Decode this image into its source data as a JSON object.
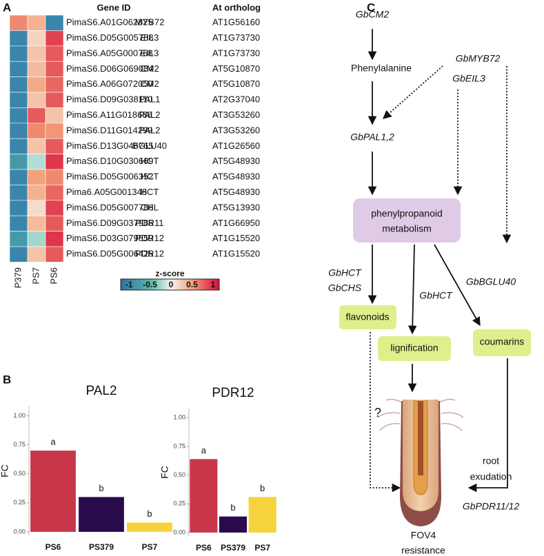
{
  "chart_data": [
    {
      "type": "heatmap",
      "panel": "A",
      "header_gene": "Gene ID",
      "header_ortholog": "At ortholog",
      "categories": [
        "P379",
        "PS7",
        "PS6"
      ],
      "gene_ids": [
        "PimaS6.A01G062825",
        "PimaS6.D05G005788",
        "PimaS6.A05G000768",
        "PimaS6.D06G069084",
        "PimaS6.A06G072050",
        "PimaS6.D09G038110",
        "PimaS6.A11G018686",
        "PimaS6.D11G014299",
        "PimaS6.D13G046765",
        "PimaS6.D10G030669",
        "PimaS6.D05G006352",
        "Pima6.A05G001348",
        "PimaS6.D05G007786",
        "PimaS6.D09G037986",
        "PimaS6.D03G079859",
        "PimaS6.D05G006425"
      ],
      "gene_names": [
        "MYB72",
        "EIL3",
        "EIL3",
        "CM2",
        "CM2",
        "PAL1",
        "PAL2",
        "PAL2",
        "BGLU40",
        "HCT",
        "HCT",
        "HCT",
        "CHL",
        "PDR11",
        "PDR12",
        "PDR12"
      ],
      "orthologs": [
        "AT1G56160",
        "AT1G73730",
        "AT1G73730",
        "AT5G10870",
        "AT5G10870",
        "AT2G37040",
        "AT3G53260",
        "AT3G53260",
        "AT1G26560",
        "AT5G48930",
        "AT5G48930",
        "AT5G48930",
        "AT5G13930",
        "AT1G66950",
        "AT1G15520",
        "AT1G15520"
      ],
      "values": [
        [
          0.6,
          0.4,
          -1
        ],
        [
          -1,
          0.2,
          0.9
        ],
        [
          -1,
          0.3,
          0.8
        ],
        [
          -1,
          0.35,
          0.8
        ],
        [
          -1,
          0.45,
          0.75
        ],
        [
          -1,
          0.3,
          0.8
        ],
        [
          -1,
          0.8,
          0.3
        ],
        [
          -1,
          0.6,
          0.55
        ],
        [
          -1,
          0.3,
          0.8
        ],
        [
          -0.8,
          -0.2,
          0.95
        ],
        [
          -1,
          0.5,
          0.6
        ],
        [
          -1,
          0.4,
          0.75
        ],
        [
          -1,
          0.15,
          0.9
        ],
        [
          -1,
          0.35,
          0.8
        ],
        [
          -0.8,
          -0.25,
          0.95
        ],
        [
          -1,
          0.3,
          0.8
        ]
      ],
      "colorbar_title": "z-score",
      "zlim": [
        -1.2,
        1.15
      ],
      "zticks": [
        -1,
        -0.5,
        0,
        0.5,
        1
      ],
      "colorscale": [
        [
          -1.2,
          "#2f6f9e"
        ],
        [
          -1,
          "#3a85ab"
        ],
        [
          -0.5,
          "#52b9a9"
        ],
        [
          0,
          "#f6f4ee"
        ],
        [
          0.5,
          "#f4a27c"
        ],
        [
          1,
          "#dd2a45"
        ],
        [
          1.15,
          "#c81a3b"
        ]
      ]
    },
    {
      "type": "bar",
      "title": "PAL2",
      "ylabel": "FC",
      "categories": [
        "PS6",
        "PS379",
        "PS7"
      ],
      "values": [
        0.7,
        0.3,
        0.08
      ],
      "annotations": [
        "a",
        "b",
        "b"
      ],
      "colors": [
        "#c9374b",
        "#2a0c4e",
        "#f6d33c"
      ],
      "ylim": [
        -0.03,
        1.08
      ],
      "yticks": [
        {
          "value": 0,
          "label": "0.00"
        },
        {
          "value": 0.25,
          "label": "0.25"
        },
        {
          "value": 0.5,
          "label": "0.50"
        },
        {
          "value": 0.75,
          "label": "0.75"
        },
        {
          "value": 1,
          "label": "1.00"
        }
      ]
    },
    {
      "type": "bar",
      "title": "PDR12",
      "ylabel": "FC",
      "categories": [
        "PS6",
        "PS379",
        "PS7"
      ],
      "values": [
        0.64,
        0.14,
        0.31
      ],
      "annotations": [
        "a",
        "b",
        "b"
      ],
      "colors": [
        "#c9374b",
        "#2a0c4e",
        "#f6d33c"
      ],
      "ylim": [
        -0.03,
        1.08
      ],
      "yticks": [
        {
          "value": 0,
          "label": "0.00"
        },
        {
          "value": 0.25,
          "label": "0.25"
        },
        {
          "value": 0.5,
          "label": "0.50"
        },
        {
          "value": 0.75,
          "label": "0.75"
        },
        {
          "value": 1,
          "label": "1.00"
        }
      ]
    }
  ],
  "panels": {
    "a": "A",
    "b": "B",
    "c": "C"
  },
  "diagram": {
    "cm2": "GbCM2",
    "phenylalanine": "Phenylalanine",
    "myb72": "GbMYB72",
    "eil3": "GbEIL3",
    "pal": "GbPAL1,2",
    "metabolism_1": "phenylpropanoid",
    "metabolism_2": "metabolism",
    "hct_1": "GbHCT",
    "chs": "GbCHS",
    "hct_2": "GbHCT",
    "bglu40": "GbBGLU40",
    "flavonoids": "flavonoids",
    "lignification": "lignification",
    "coumarins": "coumarins",
    "question": "?",
    "root_1": "root",
    "root_2": "exudation",
    "pdr": "GbPDR11/12",
    "fov4_1": "FOV4",
    "fov4_2": "resistance"
  }
}
